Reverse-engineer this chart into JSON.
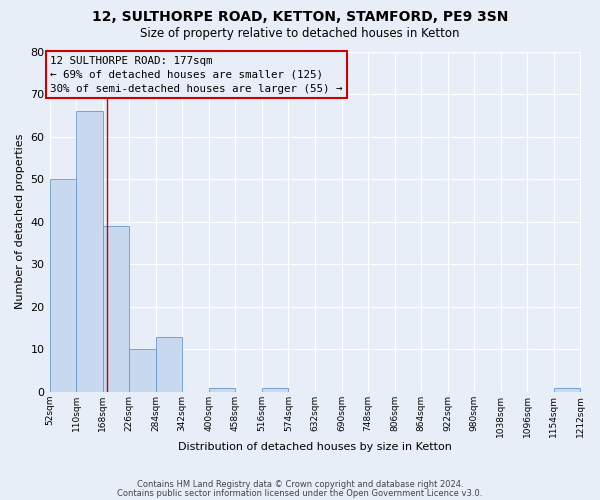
{
  "title": "12, SULTHORPE ROAD, KETTON, STAMFORD, PE9 3SN",
  "subtitle": "Size of property relative to detached houses in Ketton",
  "xlabel": "Distribution of detached houses by size in Ketton",
  "ylabel": "Number of detached properties",
  "bin_edges": [
    52,
    110,
    168,
    226,
    284,
    342,
    400,
    458,
    516,
    574,
    632,
    690,
    748,
    806,
    864,
    922,
    980,
    1038,
    1096,
    1154,
    1212
  ],
  "bin_labels": [
    "52sqm",
    "110sqm",
    "168sqm",
    "226sqm",
    "284sqm",
    "342sqm",
    "400sqm",
    "458sqm",
    "516sqm",
    "574sqm",
    "632sqm",
    "690sqm",
    "748sqm",
    "806sqm",
    "864sqm",
    "922sqm",
    "980sqm",
    "1038sqm",
    "1096sqm",
    "1154sqm",
    "1212sqm"
  ],
  "bar_heights": [
    50,
    66,
    39,
    10,
    13,
    0,
    1,
    0,
    1,
    0,
    0,
    0,
    0,
    0,
    0,
    0,
    0,
    0,
    0,
    1,
    0
  ],
  "bar_color": "#c8d8ee",
  "bar_edge_color": "#6699cc",
  "property_line_x": 177,
  "property_line_color": "#cc0000",
  "annotation_title": "12 SULTHORPE ROAD: 177sqm",
  "annotation_line1": "← 69% of detached houses are smaller (125)",
  "annotation_line2": "30% of semi-detached houses are larger (55) →",
  "annotation_box_color": "#cc0000",
  "ylim": [
    0,
    80
  ],
  "yticks": [
    0,
    10,
    20,
    30,
    40,
    50,
    60,
    70,
    80
  ],
  "background_color": "#e8eef8",
  "grid_color": "#ffffff",
  "footer_line1": "Contains HM Land Registry data © Crown copyright and database right 2024.",
  "footer_line2": "Contains public sector information licensed under the Open Government Licence v3.0."
}
